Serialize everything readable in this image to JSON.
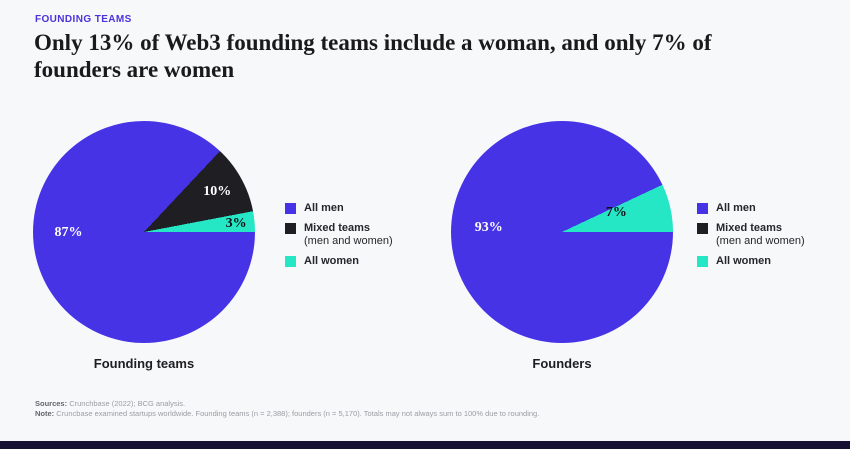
{
  "page": {
    "background": "#f7f8f9",
    "bottom_bar_color": "#181034"
  },
  "header": {
    "eyebrow": "FOUNDING TEAMS",
    "eyebrow_color": "#4b33dc",
    "title_line1": "Only 13% of Web3 founding teams include a woman, and only 7% of",
    "title_line2": "founders are women"
  },
  "colors": {
    "all_men_purple": "#4733e6",
    "mixed_teams_black": "#1f1f23",
    "all_women_teal": "#26e7c5"
  },
  "legend": {
    "items": [
      {
        "label": "All men",
        "sublabel": "",
        "color": "#4733e6"
      },
      {
        "label": "Mixed teams",
        "sublabel": "(men and women)",
        "color": "#1f1f23"
      },
      {
        "label": "All women",
        "sublabel": "",
        "color": "#26e7c5"
      }
    ]
  },
  "chart_data": [
    {
      "type": "pie",
      "title": "Founding teams",
      "start_angle_deg": 90,
      "direction": "clockwise",
      "legend_position": "right",
      "slices": [
        {
          "label": "All men",
          "value": 87,
          "display": "87%",
          "color": "#4733e6",
          "text_color": "#ffffff",
          "label_x_pct": 16,
          "label_y_pct": 50.5
        },
        {
          "label": "Mixed teams (men and women)",
          "value": 10,
          "display": "10%",
          "color": "#1f1f23",
          "text_color": "#ffffff",
          "label_x_pct": 83,
          "label_y_pct": 32
        },
        {
          "label": "All women",
          "value": 3,
          "display": "3%",
          "color": "#26e7c5",
          "text_color": "#101014",
          "label_x_pct": 91.5,
          "label_y_pct": 46.5
        }
      ]
    },
    {
      "type": "pie",
      "title": "Founders",
      "start_angle_deg": 90,
      "direction": "clockwise",
      "legend_position": "right",
      "slices": [
        {
          "label": "All men",
          "value": 93,
          "display": "93%",
          "color": "#4733e6",
          "text_color": "#ffffff",
          "label_x_pct": 17,
          "label_y_pct": 48
        },
        {
          "label": "All women",
          "value": 7,
          "display": "7%",
          "color": "#26e7c5",
          "text_color": "#101014",
          "label_x_pct": 74.5,
          "label_y_pct": 41.5
        }
      ]
    }
  ],
  "footer": {
    "sources_label": "Sources:",
    "sources_text": "Crunchbase (2022); BCG analysis.",
    "note_label": "Note:",
    "note_text": "Cruncbase examined startups worldwide. Founding teams (n = 2,388); founders (n = 5,170). Totals may not always sum to 100% due to rounding."
  }
}
